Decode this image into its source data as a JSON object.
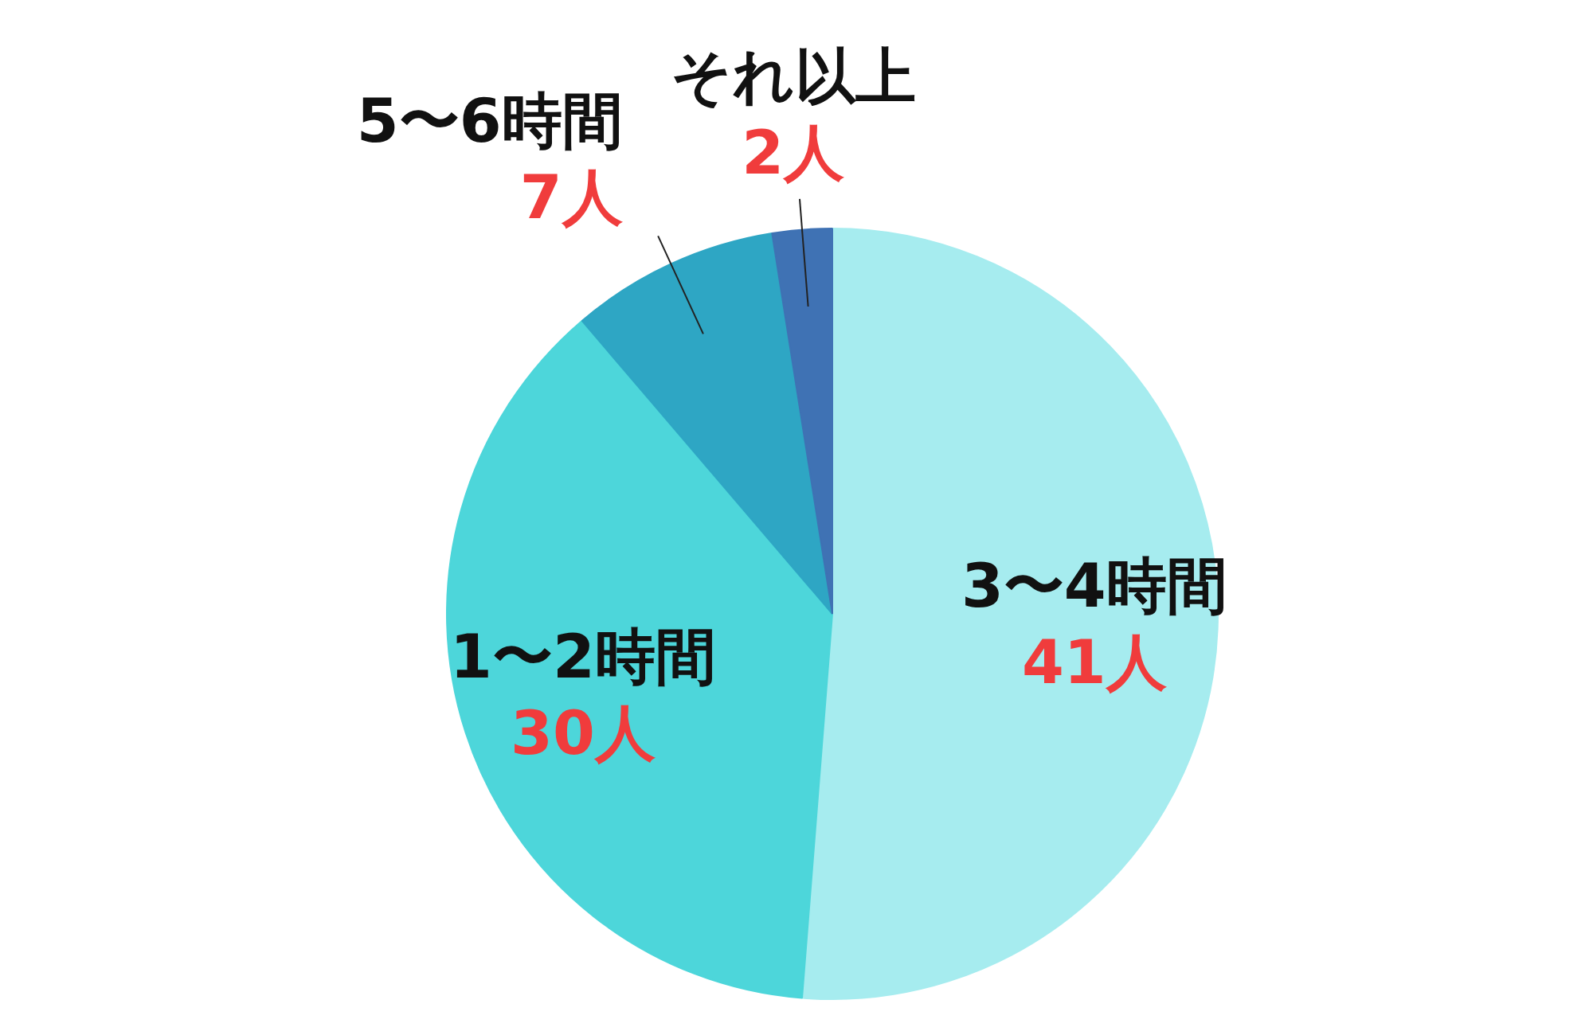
{
  "chart_data": {
    "type": "pie",
    "categories": [
      "3〜4時間",
      "1〜2時間",
      "5〜6時間",
      "それ以上"
    ],
    "values": [
      41,
      30,
      7,
      2
    ],
    "value_labels": [
      "41人",
      "30人",
      "7人",
      "2人"
    ],
    "colors": [
      "#a6ecef",
      "#4dd6da",
      "#2ea6c4",
      "#3f72b4"
    ]
  }
}
